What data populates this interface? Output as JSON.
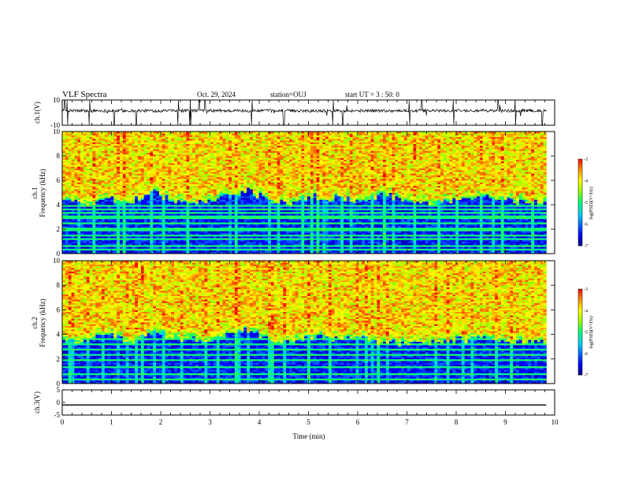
{
  "header": {
    "title": "VLF Spectra",
    "date": "Oct. 29, 2024",
    "station": "station=OUJ",
    "start": "start UT =  3 : 50: 0"
  },
  "chart_data": [
    {
      "type": "line",
      "name": "waveform-ch1",
      "ylabel": "ch.1(V)",
      "ylim": [
        -10,
        10
      ],
      "yticks": [
        "10",
        "-10"
      ],
      "xlim": [
        0,
        10
      ],
      "baseline_v": 1.5,
      "noise_v": 1.2,
      "spikes_min": [
        0.05,
        0.1,
        0.55,
        1.05,
        1.5,
        2.35,
        2.6,
        2.78,
        2.9,
        3.85,
        4.5,
        5.5,
        5.7,
        7.05,
        7.3,
        7.95,
        8.85,
        9.2,
        9.75
      ]
    },
    {
      "type": "heatmap",
      "name": "spectrogram-ch1",
      "ylabel": "ch.1\nFrequency (kHz)",
      "xlim": [
        0,
        10
      ],
      "ylim": [
        0,
        10
      ],
      "yticks": [
        "0",
        "2",
        "4",
        "6",
        "8",
        "10"
      ],
      "data_xmax": 9.83,
      "colorbar": {
        "label": "log(PSD)(V²/Hz)",
        "min": -7,
        "max": -3,
        "ticks": [
          "-3",
          "-4",
          "-5",
          "-6",
          "-7"
        ]
      },
      "cutoff_khz": [
        4.3,
        4.0,
        4.5,
        4.2,
        5.0,
        4.4,
        4.1,
        4.6,
        5.2,
        4.3,
        4.2,
        4.7,
        4.5,
        4.4,
        4.9,
        4.3,
        4.2,
        4.4,
        4.6,
        4.5,
        4.3,
        4.1
      ],
      "bands_khz": [
        0.3,
        0.7,
        1.2,
        1.5,
        2.0,
        2.5,
        3.0,
        3.3,
        3.6,
        3.9
      ]
    },
    {
      "type": "heatmap",
      "name": "spectrogram-ch2",
      "ylabel": "ch.2\nFrequency (kHz)",
      "xlim": [
        0,
        10
      ],
      "ylim": [
        0,
        10
      ],
      "yticks": [
        "0",
        "2",
        "4",
        "6",
        "8",
        "10"
      ],
      "data_xmax": 9.83,
      "colorbar": {
        "label": "log(PSD)(V²/Hz)",
        "min": -7,
        "max": -3,
        "ticks": [
          "-3",
          "-4",
          "-5",
          "-6",
          "-7"
        ]
      },
      "cutoff_khz": [
        3.6,
        3.4,
        3.9,
        3.5,
        4.2,
        3.7,
        3.5,
        3.8,
        4.3,
        3.6,
        3.5,
        3.9,
        3.7,
        3.6,
        3.4,
        3.2,
        3.3,
        3.5,
        3.7,
        3.6,
        3.4,
        3.3
      ],
      "bands_khz": [
        0.4,
        0.8,
        1.4,
        1.9,
        2.3,
        2.8,
        3.2,
        3.6
      ]
    },
    {
      "type": "line",
      "name": "waveform-ch3",
      "ylabel": "ch.3(V)",
      "ylim": [
        -5,
        5
      ],
      "yticks": [
        "5",
        "0",
        "-5"
      ],
      "xlim": [
        0,
        10
      ],
      "baseline_v": -1.0,
      "xlabel": "Time (min)",
      "xticks": [
        "0",
        "1",
        "2",
        "3",
        "4",
        "5",
        "6",
        "7",
        "8",
        "9",
        "10"
      ]
    }
  ]
}
